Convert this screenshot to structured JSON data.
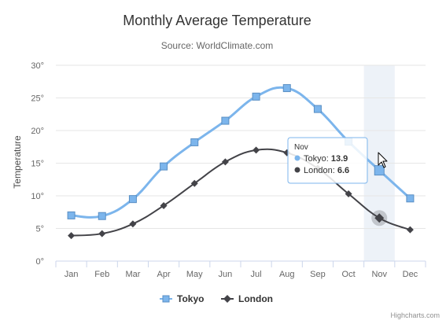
{
  "chart_data": {
    "type": "line",
    "title": "Monthly Average Temperature",
    "subtitle": "Source: WorldClimate.com",
    "xlabel": "",
    "ylabel": "Temperature",
    "categories": [
      "Jan",
      "Feb",
      "Mar",
      "Apr",
      "May",
      "Jun",
      "Jul",
      "Aug",
      "Sep",
      "Oct",
      "Nov",
      "Dec"
    ],
    "ylim": [
      0,
      30
    ],
    "yticks": [
      0,
      5,
      10,
      15,
      20,
      25,
      30
    ],
    "ytick_labels": [
      "0°",
      "5°",
      "10°",
      "15°",
      "20°",
      "25°",
      "30°"
    ],
    "grid": true,
    "legend_position": "bottom-center",
    "series": [
      {
        "name": "Tokyo",
        "color": "#7cb5ec",
        "marker": "square",
        "values": [
          7.0,
          6.9,
          9.5,
          14.5,
          18.2,
          21.5,
          25.2,
          26.5,
          23.3,
          18.3,
          13.9,
          9.6
        ]
      },
      {
        "name": "London",
        "color": "#434348",
        "marker": "diamond",
        "values": [
          3.9,
          4.2,
          5.7,
          8.5,
          11.9,
          15.2,
          17.0,
          16.6,
          14.2,
          10.3,
          6.6,
          4.8
        ]
      }
    ],
    "hover": {
      "category_index": 10,
      "highlight_color": "#e6ecf5"
    }
  },
  "tooltip": {
    "header": "Nov",
    "rows": [
      {
        "series": "Tokyo",
        "value": "13.9"
      },
      {
        "series": "London",
        "value": "6.6"
      }
    ]
  },
  "credits": "Highcharts.com"
}
